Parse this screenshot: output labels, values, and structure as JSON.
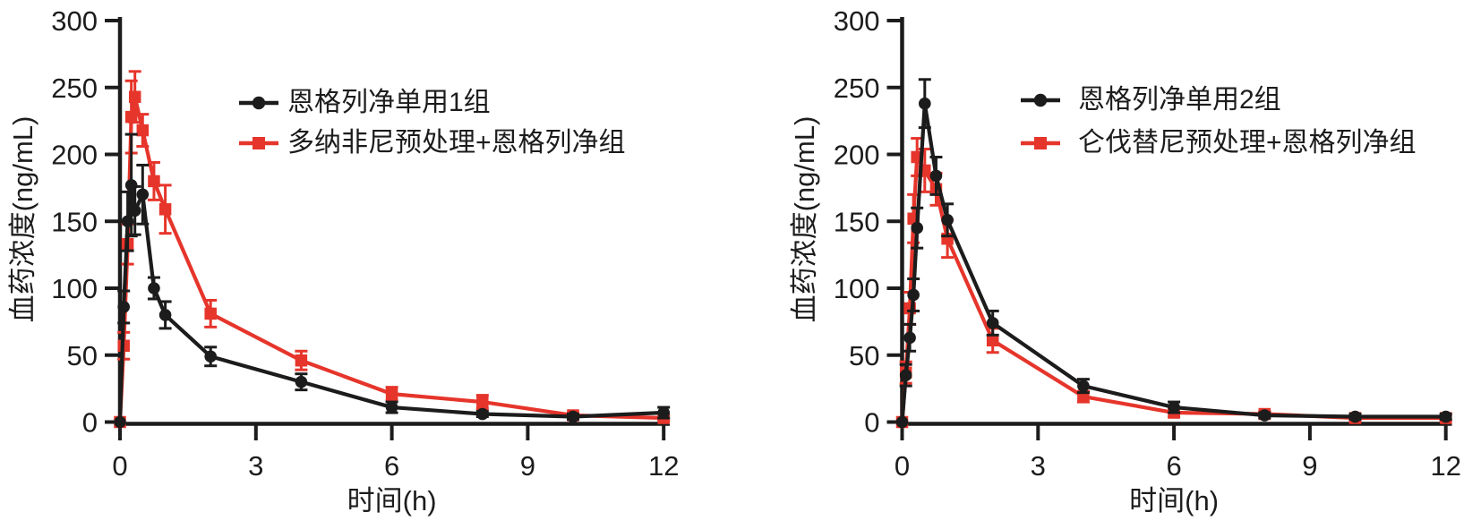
{
  "chart_data": [
    {
      "type": "line",
      "position": "left",
      "xlabel": "时间(h)",
      "ylabel": "血药浓度(ng/mL)",
      "xlim": [
        0,
        12
      ],
      "ylim": [
        0,
        300
      ],
      "xticks": [
        0,
        3,
        6,
        9,
        12
      ],
      "yticks": [
        0,
        50,
        100,
        150,
        200,
        250,
        300
      ],
      "grid": false,
      "legend_position": "upper-right-inside",
      "legend": [
        {
          "label": "恩格列净单用1组",
          "color": "#1c1c1c",
          "marker": "circle"
        },
        {
          "label": "多纳非尼预处理+恩格列净组",
          "color": "#e6352b",
          "marker": "square"
        }
      ],
      "series": [
        {
          "name": "恩格列净单用1组",
          "color": "#1c1c1c",
          "marker": "circle",
          "t": [
            0,
            0.083,
            0.17,
            0.25,
            0.33,
            0.5,
            0.75,
            1,
            2,
            4,
            6,
            8,
            10,
            12
          ],
          "y": [
            0,
            86,
            150,
            177,
            158,
            170,
            100,
            80,
            49,
            30,
            11,
            6,
            4,
            7
          ],
          "err": [
            0,
            12,
            22,
            38,
            18,
            22,
            8,
            10,
            7,
            6,
            4,
            2,
            2,
            4
          ]
        },
        {
          "name": "多纳非尼预处理+恩格列净组",
          "color": "#e6352b",
          "marker": "square",
          "t": [
            0,
            0.083,
            0.17,
            0.25,
            0.33,
            0.5,
            0.75,
            1,
            2,
            4,
            6,
            8,
            10,
            12
          ],
          "y": [
            0,
            57,
            133,
            228,
            243,
            218,
            180,
            159,
            81,
            46,
            21,
            15,
            5,
            3
          ],
          "err": [
            0,
            10,
            15,
            27,
            19,
            12,
            14,
            18,
            10,
            7,
            5,
            5,
            2,
            2
          ]
        }
      ]
    },
    {
      "type": "line",
      "position": "right",
      "xlabel": "时间(h)",
      "ylabel": "血药浓度(ng/mL)",
      "xlim": [
        0,
        12
      ],
      "ylim": [
        0,
        300
      ],
      "xticks": [
        0,
        3,
        6,
        9,
        12
      ],
      "yticks": [
        0,
        50,
        100,
        150,
        200,
        250,
        300
      ],
      "grid": false,
      "legend_position": "upper-right-inside",
      "legend": [
        {
          "label": "恩格列净单用2组",
          "color": "#1c1c1c",
          "marker": "circle"
        },
        {
          "label": "仑伐替尼预处理+恩格列净组",
          "color": "#e6352b",
          "marker": "square"
        }
      ],
      "series": [
        {
          "name": "恩格列净单用2组",
          "color": "#1c1c1c",
          "marker": "circle",
          "t": [
            0,
            0.083,
            0.17,
            0.25,
            0.33,
            0.5,
            0.75,
            1,
            2,
            4,
            6,
            8,
            10,
            12
          ],
          "y": [
            0,
            35,
            63,
            95,
            145,
            238,
            184,
            151,
            74,
            27,
            11,
            5,
            4,
            4
          ],
          "err": [
            0,
            8,
            10,
            12,
            15,
            18,
            14,
            12,
            9,
            5,
            4,
            2,
            2,
            2
          ]
        },
        {
          "name": "仑伐替尼预处理+恩格列净组",
          "color": "#e6352b",
          "marker": "square",
          "t": [
            0,
            0.083,
            0.17,
            0.25,
            0.33,
            0.5,
            0.75,
            1,
            2,
            4,
            6,
            8,
            10,
            12
          ],
          "y": [
            0,
            37,
            85,
            152,
            198,
            188,
            174,
            137,
            61,
            19,
            7,
            6,
            3,
            3
          ],
          "err": [
            0,
            8,
            12,
            18,
            14,
            16,
            12,
            14,
            9,
            4,
            3,
            2,
            2,
            2
          ]
        }
      ]
    }
  ]
}
